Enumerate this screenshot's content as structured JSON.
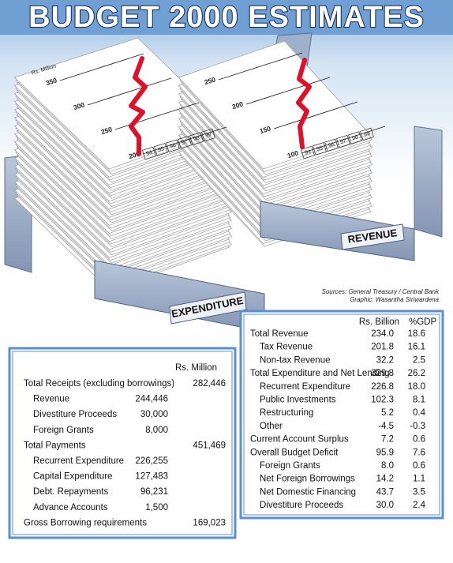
{
  "header": {
    "title": "BUDGET 2000 ESTIMATES"
  },
  "credits": {
    "sources": "Sources: General Treasury / Central Bank",
    "graphic": "Graphic: Wasantha Siriwardena"
  },
  "expenditure_sheet": {
    "unit": "Rs. Million",
    "axis_labels": [
      "350",
      "300",
      "250",
      "200"
    ],
    "years": [
      "94",
      "95",
      "96",
      "97",
      "98",
      "99"
    ],
    "tray_label": "EXPENDITURE"
  },
  "revenue_sheet": {
    "axis_labels": [
      "250",
      "200",
      "150",
      "100"
    ],
    "years": [
      "94",
      "95",
      "96",
      "97",
      "98",
      "99"
    ],
    "tray_label": "REVENUE"
  },
  "left_table": {
    "unit": "Rs. Million",
    "groups": [
      {
        "label": "Total Receipts (excluding borrowings)",
        "total": "282,446",
        "items": [
          {
            "label": "Revenue",
            "amount": "244,446"
          },
          {
            "label": "Divestiture Proceeds",
            "amount": "30,000"
          },
          {
            "label": "Foreign Grants",
            "amount": "8,000"
          }
        ]
      },
      {
        "label": "Total Payments",
        "total": "451,469",
        "items": [
          {
            "label": "Recurrent Expenditure",
            "amount": "226,255"
          },
          {
            "label": "Capital Expenditure",
            "amount": "127,483"
          },
          {
            "label": "Debt. Repayments",
            "amount": "96,231"
          },
          {
            "label": "Advance Accounts",
            "amount": "1,500"
          }
        ]
      },
      {
        "label": "Gross Borrowing requirements",
        "total": "169,023",
        "items": []
      }
    ]
  },
  "right_table": {
    "columns": [
      "Rs. Billion",
      "%GDP"
    ],
    "groups": [
      {
        "label": "Total Revenue",
        "amount": "234.0",
        "gdp": "18.6",
        "items": [
          {
            "label": "Tax Revenue",
            "amount": "201.8",
            "gdp": "16.1"
          },
          {
            "label": "Non-tax Revenue",
            "amount": "32.2",
            "gdp": "2.5"
          }
        ]
      },
      {
        "label": "Total Expenditure and Net Lending",
        "amount": "329.8",
        "gdp": "26.2",
        "items": [
          {
            "label": "Recurrent Expenditure",
            "amount": "226.8",
            "gdp": "18.0"
          },
          {
            "label": "Public Investments",
            "amount": "102.3",
            "gdp": "8.1"
          },
          {
            "label": "Restructuring",
            "amount": "5.2",
            "gdp": "0.4"
          },
          {
            "label": "Other",
            "amount": "-4.5",
            "gdp": "-0.3"
          }
        ]
      },
      {
        "label": "Current Account Surplus",
        "amount": "7.2",
        "gdp": "0.6",
        "items": []
      },
      {
        "label": "Overall Budget Deficit",
        "amount": "95.9",
        "gdp": "7.6",
        "items": [
          {
            "label": "Foreign Grants",
            "amount": "8.0",
            "gdp": "0.6"
          },
          {
            "label": "Net Foreign Borrowings",
            "amount": "14.2",
            "gdp": "1.1"
          },
          {
            "label": "Net Domestic Financing",
            "amount": "43.7",
            "gdp": "3.5"
          },
          {
            "label": "Divestiture Proceeds",
            "amount": "30.0",
            "gdp": "2.4"
          }
        ]
      }
    ]
  }
}
